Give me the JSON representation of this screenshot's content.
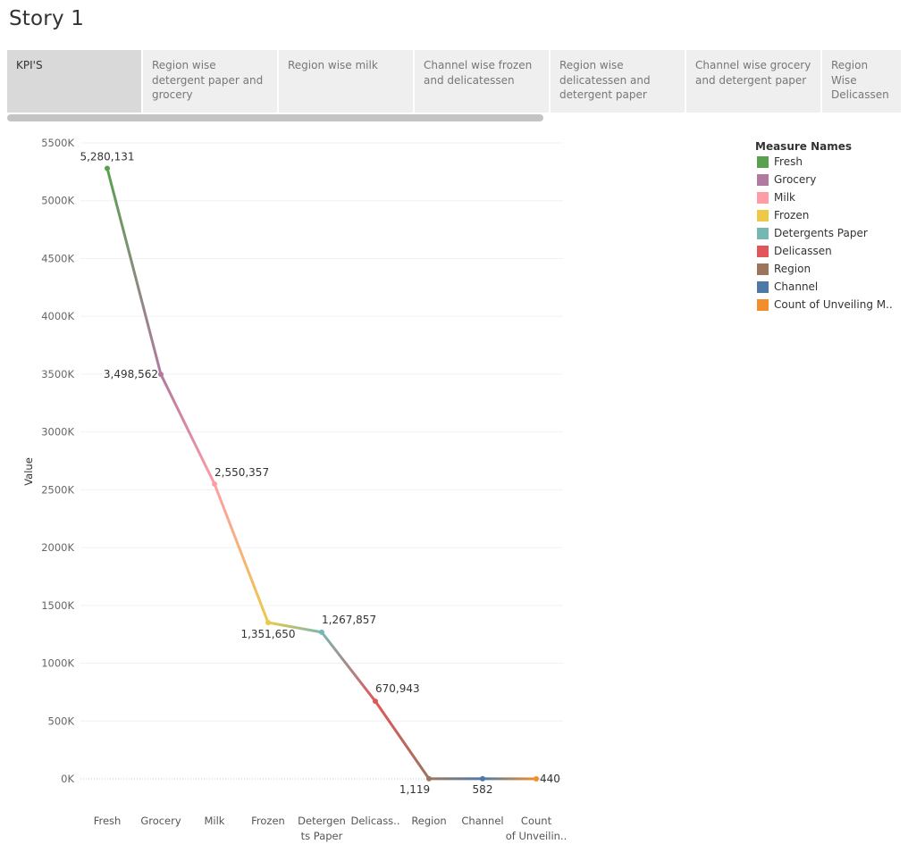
{
  "story": {
    "title": "Story 1",
    "tabs": [
      {
        "label": "KPI'S",
        "active": true
      },
      {
        "label": "Region wise detergent paper and grocery",
        "active": false
      },
      {
        "label": "Region wise milk",
        "active": false
      },
      {
        "label": "Channel wise frozen and delicatessen",
        "active": false
      },
      {
        "label": "Region wise delicatessen and detergent paper",
        "active": false
      },
      {
        "label": "Channel wise grocery and detergent paper",
        "active": false
      },
      {
        "label": "Region Wise Delicassen",
        "active": false
      }
    ]
  },
  "legend": {
    "title": "Measure Names",
    "items": [
      {
        "label": "Fresh",
        "color": "#59a14f"
      },
      {
        "label": "Grocery",
        "color": "#b07aa1"
      },
      {
        "label": "Milk",
        "color": "#ff9da7"
      },
      {
        "label": "Frozen",
        "color": "#edc948"
      },
      {
        "label": "Detergents Paper",
        "color": "#76b7b2"
      },
      {
        "label": "Delicassen",
        "color": "#e15759"
      },
      {
        "label": "Region",
        "color": "#9c755f"
      },
      {
        "label": "Channel",
        "color": "#4e79a7"
      },
      {
        "label": "Count of Unveiling M..",
        "color": "#f28e2b"
      }
    ]
  },
  "chart_data": {
    "type": "line",
    "ylabel": "Value",
    "xlabel": "",
    "ylim": [
      -300000,
      5500000
    ],
    "yticks": [
      0,
      500000,
      1000000,
      1500000,
      2000000,
      2500000,
      3000000,
      3500000,
      4000000,
      4500000,
      5000000,
      5500000
    ],
    "ytick_labels": [
      "0K",
      "500K",
      "1000K",
      "1500K",
      "2000K",
      "2500K",
      "3000K",
      "3500K",
      "4000K",
      "4500K",
      "5000K",
      "5500K"
    ],
    "grid": true,
    "legend_position": "top-right",
    "categories": [
      "Fresh",
      "Grocery",
      "Milk",
      "Frozen",
      "Detergents Paper",
      "Delicassen",
      "Region",
      "Channel",
      "Count of Unveiling M.."
    ],
    "category_labels": [
      "Fresh",
      "Grocery",
      "Milk",
      "Frozen",
      "Detergen ts Paper",
      "Delicass..",
      "Region",
      "Channel",
      "Count of Unveilin.."
    ],
    "values": [
      5280131,
      3498562,
      2550357,
      1351650,
      1267857,
      670943,
      1119,
      582,
      440
    ],
    "data_labels": [
      "5,280,131",
      "3,498,562",
      "2,550,357",
      "1,351,650",
      "1,267,857",
      "670,943",
      "1,119",
      "582",
      "440"
    ],
    "colors": [
      "#59a14f",
      "#b07aa1",
      "#ff9da7",
      "#edc948",
      "#76b7b2",
      "#e15759",
      "#9c755f",
      "#4e79a7",
      "#f28e2b"
    ]
  }
}
